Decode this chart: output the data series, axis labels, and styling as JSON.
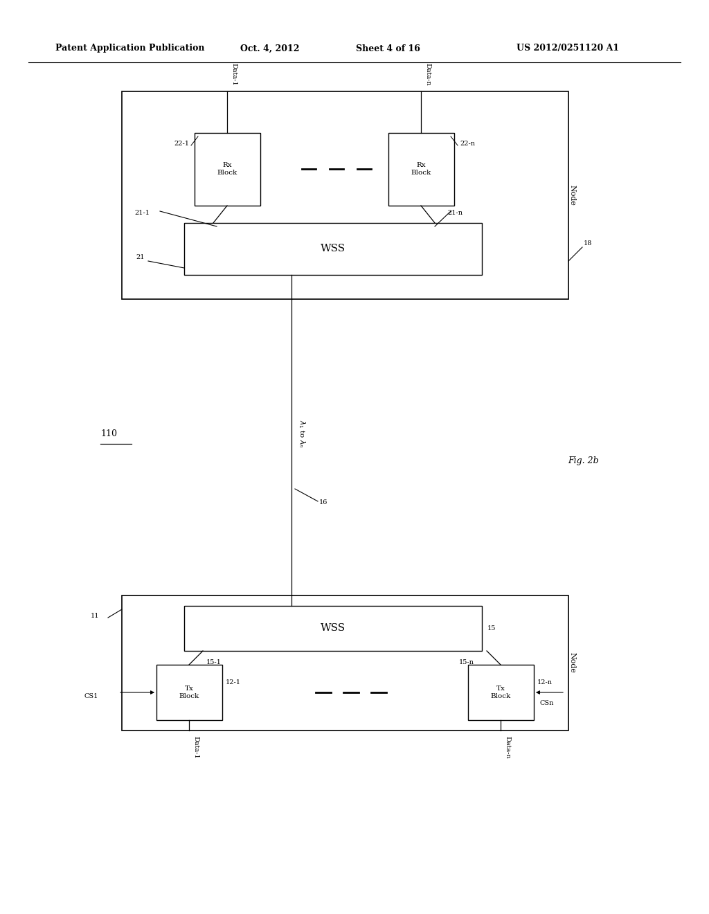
{
  "bg_color": "#ffffff",
  "header_text": "Patent Application Publication",
  "header_date": "Oct. 4, 2012",
  "header_sheet": "Sheet 4 of 16",
  "header_patent": "US 2012/0251120 A1",
  "line_color": "#000000",
  "text_color": "#000000"
}
